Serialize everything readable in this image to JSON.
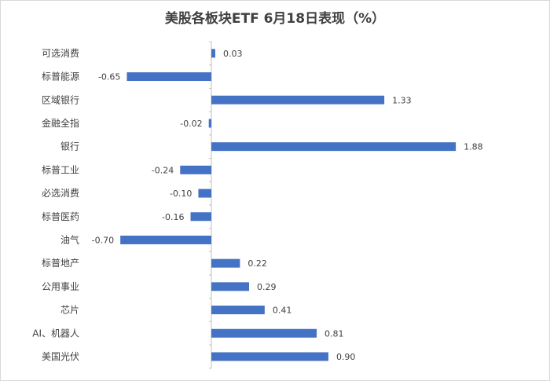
{
  "chart_data": {
    "type": "bar",
    "orientation": "horizontal",
    "title": "美股各板块ETF  6月18日表现（%）",
    "categories": [
      "可选消费",
      "标普能源",
      "区域银行",
      "金融全指",
      "银行",
      "标普工业",
      "必选消费",
      "标普医药",
      "油气",
      "标普地产",
      "公用事业",
      "芯片",
      "AI、机器人",
      "美国光伏"
    ],
    "values": [
      0.03,
      -0.65,
      1.33,
      -0.02,
      1.88,
      -0.24,
      -0.1,
      -0.16,
      -0.7,
      0.22,
      0.29,
      0.41,
      0.81,
      0.9
    ],
    "value_labels": [
      "0.03",
      "-0.65",
      "1.33",
      "-0.02",
      "1.88",
      "-0.24",
      "-0.10",
      "-0.16",
      "-0.70",
      "0.22",
      "0.29",
      "0.41",
      "0.81",
      "0.90"
    ],
    "bar_color": "#4472c4",
    "xlim": [
      -0.7,
      1.88
    ],
    "grid": false,
    "legend": "none"
  }
}
